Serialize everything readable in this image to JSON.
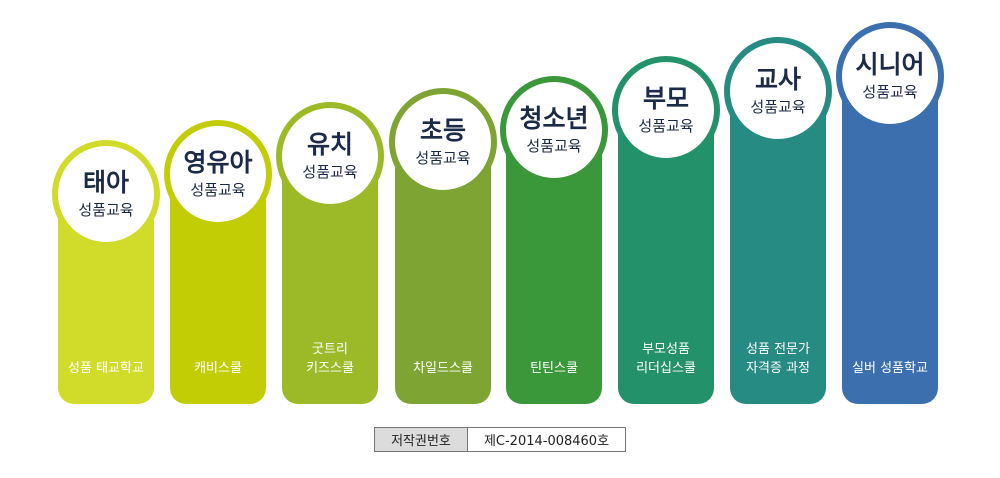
{
  "stages": [
    {
      "title": "태아",
      "subtitle": "성품교육",
      "program": [
        "성품 태교학교"
      ],
      "color": "#d1dc2a"
    },
    {
      "title": "영유아",
      "subtitle": "성품교육",
      "program": [
        "캐비스쿨"
      ],
      "color": "#c3cd05"
    },
    {
      "title": "유치",
      "subtitle": "성품교육",
      "program": [
        "굿트리",
        "키즈스쿨"
      ],
      "color": "#9cb927"
    },
    {
      "title": "초등",
      "subtitle": "성품교육",
      "program": [
        "차일드스쿨"
      ],
      "color": "#7ea433"
    },
    {
      "title": "청소년",
      "subtitle": "성품교육",
      "program": [
        "틴틴스쿨"
      ],
      "color": "#3a983b"
    },
    {
      "title": "부모",
      "subtitle": "성품교육",
      "program": [
        "부모성품",
        "리더십스쿨"
      ],
      "color": "#23926a"
    },
    {
      "title": "교사",
      "subtitle": "성품교육",
      "program": [
        "성품 전문가",
        "자격증 과정"
      ],
      "color": "#268b83"
    },
    {
      "title": "시니어",
      "subtitle": "성품교육",
      "program": [
        "실버 성품학교"
      ],
      "color": "#3b6fae"
    }
  ],
  "copyright": {
    "label": "저작권번호",
    "value": "제C-2014-008460호"
  }
}
